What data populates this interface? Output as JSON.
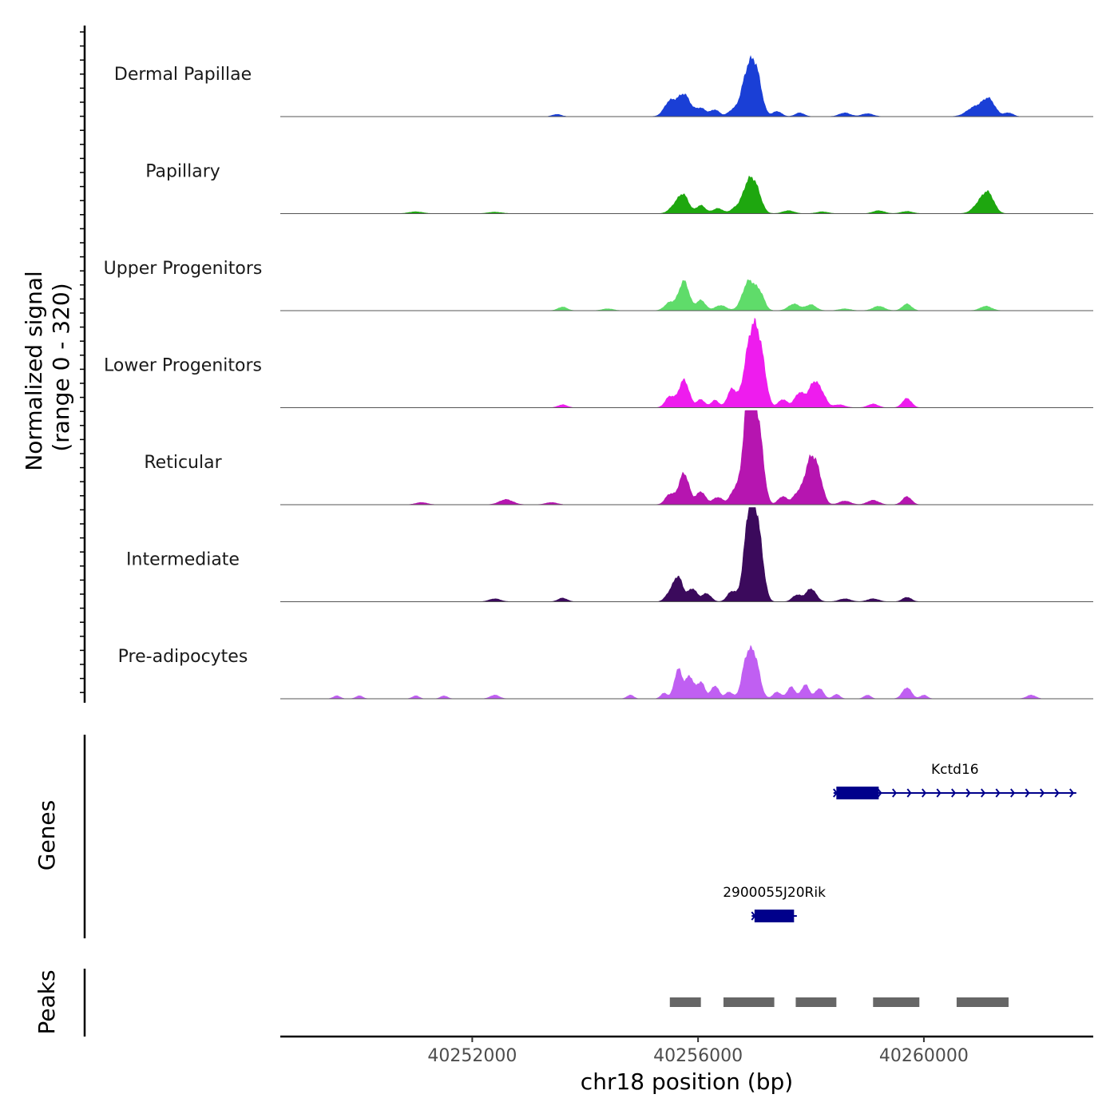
{
  "chart_data": {
    "type": "area",
    "ylabel": "Normalized signal\n(range 0 - 320)",
    "ylim": [
      0,
      320
    ],
    "xlabel": "chr18 position (bp)",
    "xlim": [
      40248600,
      40263000
    ],
    "x_ticks": [
      40252000,
      40256000,
      40260000
    ],
    "x_tick_labels": [
      "40252000",
      "40256000",
      "40260000"
    ],
    "tracks": [
      {
        "name": "Dermal Papillae",
        "color": "#1a3fd6",
        "peaks": [
          [
            40255500,
            40,
            100
          ],
          [
            40255750,
            60,
            110
          ],
          [
            40256050,
            22,
            90
          ],
          [
            40256300,
            18,
            80
          ],
          [
            40256600,
            14,
            80
          ],
          [
            40256900,
            130,
            120
          ],
          [
            40257050,
            70,
            90
          ],
          [
            40257400,
            14,
            80
          ],
          [
            40257800,
            10,
            80
          ],
          [
            40258600,
            10,
            100
          ],
          [
            40259000,
            8,
            100
          ],
          [
            40260900,
            25,
            140
          ],
          [
            40261150,
            45,
            110
          ],
          [
            40261500,
            10,
            80
          ],
          [
            40253500,
            6,
            80
          ]
        ]
      },
      {
        "name": "Papillary",
        "color": "#1ea70f",
        "peaks": [
          [
            40255600,
            22,
            100
          ],
          [
            40255750,
            45,
            90
          ],
          [
            40256050,
            22,
            80
          ],
          [
            40256350,
            14,
            90
          ],
          [
            40256650,
            12,
            80
          ],
          [
            40256900,
            85,
            110
          ],
          [
            40257050,
            40,
            90
          ],
          [
            40257600,
            8,
            100
          ],
          [
            40258200,
            5,
            100
          ],
          [
            40259200,
            8,
            100
          ],
          [
            40259700,
            6,
            100
          ],
          [
            40261000,
            28,
            120
          ],
          [
            40261150,
            45,
            100
          ],
          [
            40251000,
            5,
            120
          ],
          [
            40252400,
            4,
            120
          ]
        ]
      },
      {
        "name": "Upper Progenitors",
        "color": "#5fdc6a",
        "peaks": [
          [
            40255500,
            22,
            90
          ],
          [
            40255750,
            80,
            90
          ],
          [
            40256050,
            28,
            80
          ],
          [
            40256400,
            14,
            100
          ],
          [
            40256900,
            80,
            110
          ],
          [
            40257100,
            40,
            80
          ],
          [
            40257700,
            18,
            100
          ],
          [
            40258000,
            16,
            90
          ],
          [
            40258600,
            5,
            100
          ],
          [
            40259200,
            12,
            100
          ],
          [
            40259700,
            18,
            80
          ],
          [
            40261100,
            12,
            100
          ],
          [
            40253600,
            10,
            80
          ],
          [
            40254400,
            5,
            100
          ]
        ]
      },
      {
        "name": "Lower Progenitors",
        "color": "#ee1cee",
        "peaks": [
          [
            40255500,
            30,
            80
          ],
          [
            40255750,
            75,
            90
          ],
          [
            40256050,
            22,
            70
          ],
          [
            40256300,
            20,
            70
          ],
          [
            40256600,
            50,
            80
          ],
          [
            40256850,
            60,
            90
          ],
          [
            40257000,
            205,
            110
          ],
          [
            40257150,
            60,
            80
          ],
          [
            40257500,
            22,
            80
          ],
          [
            40257800,
            40,
            90
          ],
          [
            40258050,
            65,
            90
          ],
          [
            40258200,
            30,
            80
          ],
          [
            40258500,
            8,
            100
          ],
          [
            40259100,
            10,
            90
          ],
          [
            40259700,
            25,
            80
          ],
          [
            40253600,
            8,
            80
          ]
        ]
      },
      {
        "name": "Reticular",
        "color": "#b615b0",
        "peaks": [
          [
            40255500,
            28,
            80
          ],
          [
            40255750,
            85,
            90
          ],
          [
            40256050,
            35,
            80
          ],
          [
            40256350,
            20,
            90
          ],
          [
            40256650,
            40,
            80
          ],
          [
            40256850,
            110,
            80
          ],
          [
            40256950,
            260,
            100
          ],
          [
            40257100,
            120,
            80
          ],
          [
            40257500,
            22,
            80
          ],
          [
            40257750,
            25,
            80
          ],
          [
            40258000,
            125,
            110
          ],
          [
            40258150,
            40,
            80
          ],
          [
            40258600,
            10,
            100
          ],
          [
            40259100,
            12,
            100
          ],
          [
            40259700,
            22,
            80
          ],
          [
            40252600,
            14,
            120
          ],
          [
            40251100,
            6,
            100
          ],
          [
            40253400,
            6,
            100
          ]
        ]
      },
      {
        "name": "Intermediate",
        "color": "#3b0a5c",
        "peaks": [
          [
            40255500,
            22,
            80
          ],
          [
            40255650,
            65,
            80
          ],
          [
            40255900,
            35,
            80
          ],
          [
            40256150,
            22,
            80
          ],
          [
            40256600,
            28,
            80
          ],
          [
            40256850,
            45,
            80
          ],
          [
            40256950,
            255,
            100
          ],
          [
            40257100,
            100,
            80
          ],
          [
            40257750,
            18,
            80
          ],
          [
            40258000,
            35,
            90
          ],
          [
            40258600,
            8,
            100
          ],
          [
            40259100,
            8,
            100
          ],
          [
            40259700,
            12,
            80
          ],
          [
            40252400,
            8,
            100
          ],
          [
            40253600,
            10,
            80
          ]
        ]
      },
      {
        "name": "Pre-adipocytes",
        "color": "#c05ff2",
        "peaks": [
          [
            40255400,
            15,
            60
          ],
          [
            40255650,
            80,
            70
          ],
          [
            40255850,
            60,
            70
          ],
          [
            40256050,
            45,
            70
          ],
          [
            40256300,
            35,
            70
          ],
          [
            40256550,
            18,
            70
          ],
          [
            40256850,
            90,
            80
          ],
          [
            40257000,
            110,
            90
          ],
          [
            40257400,
            18,
            70
          ],
          [
            40257650,
            32,
            70
          ],
          [
            40257900,
            38,
            70
          ],
          [
            40258150,
            28,
            70
          ],
          [
            40258450,
            12,
            60
          ],
          [
            40259000,
            10,
            60
          ],
          [
            40259700,
            30,
            80
          ],
          [
            40260000,
            10,
            60
          ],
          [
            40261900,
            10,
            80
          ],
          [
            40249600,
            8,
            60
          ],
          [
            40250000,
            8,
            60
          ],
          [
            40251000,
            8,
            60
          ],
          [
            40251500,
            8,
            60
          ],
          [
            40252400,
            10,
            80
          ],
          [
            40254800,
            10,
            60
          ]
        ]
      }
    ],
    "genes_label": "Genes",
    "genes": [
      {
        "name": "Kctd16",
        "start": 40258400,
        "end": 40262700,
        "exon_start": 40258450,
        "exon_end": 40259200,
        "strand": "+",
        "row": 1
      },
      {
        "name": "2900055J20Rik",
        "start": 40256950,
        "end": 40257750,
        "exon_start": 40257000,
        "exon_end": 40257700,
        "strand": "+",
        "row": 2
      }
    ],
    "gene_color": "#00008b",
    "peaks_label": "Peaks",
    "peak_regions": [
      [
        40255500,
        40256050
      ],
      [
        40256450,
        40257350
      ],
      [
        40257730,
        40258450
      ],
      [
        40259100,
        40259920
      ],
      [
        40260580,
        40261500
      ]
    ],
    "peak_color": "#666666"
  }
}
